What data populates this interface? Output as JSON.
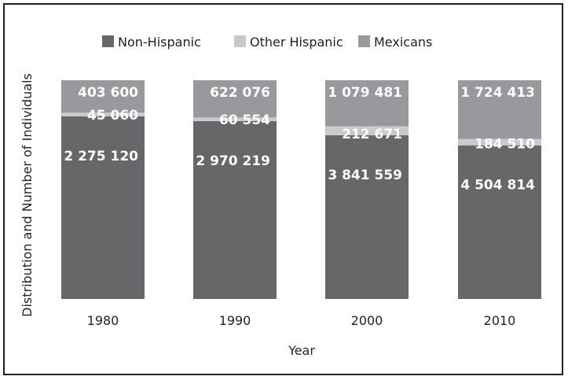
{
  "chart_data": {
    "type": "bar",
    "stacked": "percent",
    "title": "",
    "xlabel": "Year",
    "ylabel": "Distribution and Number of Individuals",
    "categories": [
      "1980",
      "1990",
      "2000",
      "2010"
    ],
    "series": [
      {
        "name": "Non-Hispanic",
        "color": "#67676a",
        "values": [
          2275120,
          2970219,
          3841559,
          4504814
        ],
        "labels": [
          "2 275 120",
          "2 970 219",
          "3 841 559",
          "4 504 814"
        ]
      },
      {
        "name": "Other Hispanic",
        "color": "#c9cacc",
        "values": [
          45060,
          60554,
          212671,
          184510
        ],
        "labels": [
          "45 060",
          "60 554",
          "212 671",
          "184 510"
        ]
      },
      {
        "name": "Mexicans",
        "color": "#98999c",
        "values": [
          403600,
          622076,
          1079481,
          1724413
        ],
        "labels": [
          "403 600",
          "622 076",
          "1 079 481",
          "1 724 413"
        ]
      }
    ],
    "legend": "top",
    "grid": false
  }
}
